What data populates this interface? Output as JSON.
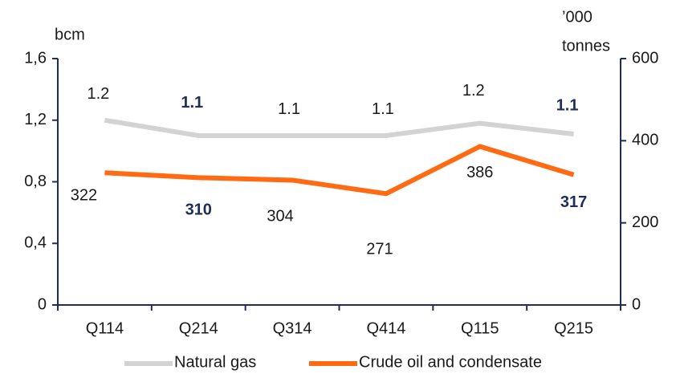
{
  "chart_data": {
    "type": "line",
    "ylabel": "bcm",
    "y2label": [
      "’000",
      "tonnes"
    ],
    "categories": [
      "Q114",
      "Q214",
      "Q314",
      "Q414",
      "Q115",
      "Q215"
    ],
    "series": [
      {
        "name": "Natural gas",
        "color": "#d3d3d3",
        "values": [
          1.2,
          1.1,
          1.1,
          1.1,
          1.18,
          1.11
        ],
        "value_labels": [
          "1.2",
          "1.1",
          "1.1",
          "1.1",
          "1.2",
          "1.1"
        ]
      },
      {
        "name": "Crude oil and condensate",
        "color": "#ff6a13",
        "axis": "y2",
        "values": [
          322,
          310,
          304,
          271,
          386,
          317
        ]
      }
    ],
    "ylim": [
      0,
      1.6
    ],
    "yticks": [
      0,
      {
        "value": 0.4,
        "label": "0,4"
      },
      {
        "value": 0.8,
        "label": "0,8"
      },
      {
        "value": 1.2,
        "label": "1,2"
      },
      {
        "value": 1.6,
        "label": "1,6"
      }
    ],
    "y2lim": [
      0,
      600
    ],
    "y2ticks": [
      0,
      200,
      400,
      600
    ],
    "legend": "bottom"
  }
}
